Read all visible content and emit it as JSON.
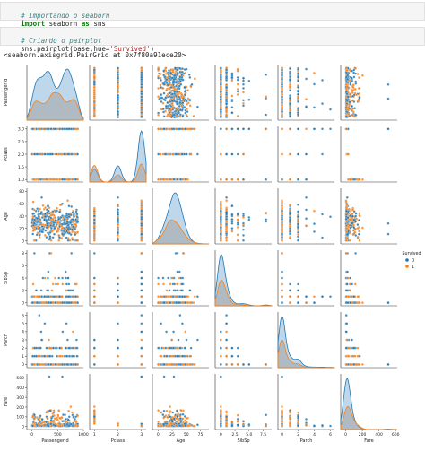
{
  "cell1": {
    "comment": "# Importando o seaborn",
    "kw_import": "import",
    "module": "seaborn",
    "kw_as": "as",
    "alias": "sns"
  },
  "cell2": {
    "comment": "# Criando o pairplot",
    "code_prefix": "sns.pairplot(base,hue=",
    "code_str": "'Survived'",
    "code_suffix": ")"
  },
  "output_text": "<seaborn.axisgrid.PairGrid at 0x7f80a91ece20>",
  "colors": {
    "s0": "#1f77b4",
    "s1": "#ff7f0e",
    "diag0": "#8bb6d9",
    "diag1": "#a3a3a3"
  },
  "chart_data": {
    "type": "pairplot",
    "variables": [
      "PassengerId",
      "Pclass",
      "Age",
      "SibSp",
      "Parch",
      "Fare"
    ],
    "hue": "Survived",
    "legend": {
      "title": "Survived",
      "labels": [
        "0",
        "1"
      ],
      "placement": "right"
    },
    "ranges": {
      "PassengerId": [
        0,
        900
      ],
      "Pclass": [
        1.0,
        3.0
      ],
      "Age": [
        0,
        80
      ],
      "SibSp": [
        0,
        8
      ],
      "Parch": [
        0,
        6
      ],
      "Fare": [
        0,
        512
      ]
    },
    "x_ticks": {
      "PassengerId": [
        0,
        500,
        1000
      ],
      "Pclass": [
        1,
        2,
        3
      ],
      "Age": [
        0,
        25,
        50,
        75
      ],
      "SibSp": [
        0,
        2.5,
        5.0,
        7.5
      ],
      "Parch": [
        0,
        2,
        4,
        6
      ],
      "Fare": [
        0,
        200,
        400,
        600
      ]
    },
    "x_tick_labels": {
      "PassengerId": [
        "0",
        "500",
        "1000"
      ],
      "Pclass": [
        "1",
        "2",
        "3"
      ],
      "Age": [
        "0",
        "25",
        "50",
        "75"
      ],
      "SibSp": [
        "0",
        "2.5",
        "5.0",
        "7.5"
      ],
      "Parch": [
        "0",
        "2",
        "4",
        "6"
      ],
      "Fare": [
        "0",
        "200",
        "400",
        "600"
      ]
    },
    "y_ticks": {
      "PassengerId": [],
      "Pclass": [
        1.0,
        1.5,
        2.0,
        2.5,
        3.0
      ],
      "Age": [
        0,
        20,
        40,
        60,
        80
      ],
      "SibSp": [
        0,
        2,
        4,
        6,
        8
      ],
      "Parch": [
        0,
        1,
        2,
        3,
        4,
        5,
        6
      ],
      "Fare": [
        0,
        100,
        200,
        300,
        400,
        500
      ]
    },
    "y_tick_labels": {
      "PassengerId": [],
      "Pclass": [
        "1.0",
        "1.5",
        "2.0",
        "2.5",
        "3.0"
      ],
      "Age": [
        "0",
        "20",
        "40",
        "60",
        "80"
      ],
      "SibSp": [
        "0",
        "2",
        "4",
        "6",
        "8"
      ],
      "Parch": [
        "0",
        "1",
        "2",
        "3",
        "4",
        "5",
        "6"
      ],
      "Fare": [
        "0",
        "100",
        "200",
        "300",
        "400",
        "500"
      ]
    },
    "x_axis_range": {
      "PassengerId": [
        -100,
        1000
      ],
      "Pclass": [
        0.8,
        3.2
      ],
      "Age": [
        -10,
        90
      ],
      "SibSp": [
        -1,
        9
      ],
      "Parch": [
        -0.5,
        6.5
      ],
      "Fare": [
        -60,
        620
      ]
    },
    "y_axis_range": {
      "PassengerId": [
        -50,
        950
      ],
      "Pclass": [
        0.9,
        3.1
      ],
      "Age": [
        -5,
        85
      ],
      "SibSp": [
        -0.5,
        8.5
      ],
      "Parch": [
        -0.4,
        6.4
      ],
      "Fare": [
        -30,
        540
      ]
    },
    "discrete_levels": {
      "Pclass": [
        1,
        2,
        3
      ],
      "SibSp": [
        0,
        1,
        2,
        3,
        4,
        5,
        8
      ],
      "Parch": [
        0,
        1,
        2,
        3,
        4,
        5,
        6
      ]
    }
  }
}
